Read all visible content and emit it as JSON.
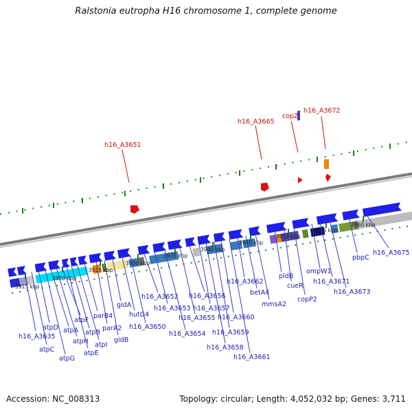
{
  "title": "Ralstonia eutropha H16 chromosome 1, complete genome",
  "footer": {
    "accession": "Accession: NC_008313",
    "topology": "Topology: circular; Length: 4,052,032 bp; Genes: 3,711"
  },
  "colors": {
    "gene_blue": "#1f1fe6",
    "highlight_red": "#cc1111",
    "label_blue": "#1a1aa8",
    "tick_green": "#1d7d1d",
    "axis_gray": "#8a8a8a"
  },
  "scale_labels": [
    "3915 kbp",
    "3920 kbp",
    "3925 kbp",
    "3930 kbp",
    "3935 kbp",
    "3940 kbp",
    "3945 kbp",
    "3950 kbp",
    "3955 kbp",
    "3960 kbp"
  ],
  "highlighted_genes": [
    "h16_A3651",
    "h16_A3665",
    "copZ",
    "h16_A3672"
  ],
  "gene_labels": [
    "h16_A3635",
    "atpC",
    "atpD",
    "atpG",
    "atpA",
    "atpH",
    "atpF",
    "atpE",
    "atpB",
    "atpI",
    "parB4",
    "parA2",
    "gidB",
    "gidA",
    "hutG4",
    "h16_A3650",
    "h16_A3652",
    "h16_A3653",
    "h16_A3654",
    "h16_A3655",
    "h16_A3656",
    "h16_A3657",
    "h16_A3658",
    "h16_A3659",
    "h16_A3660",
    "h16_A3661",
    "h16_A3662",
    "betA4",
    "mmsA2",
    "pldB",
    "cueR",
    "copP2",
    "ompW1",
    "h16_A3671",
    "h16_A3673",
    "pbpC",
    "h16_A3675"
  ]
}
